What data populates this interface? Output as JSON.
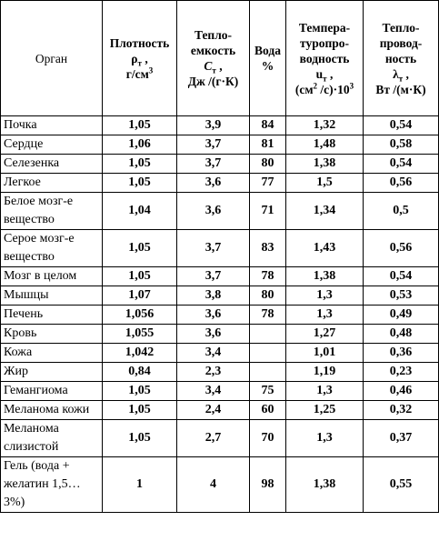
{
  "header": {
    "organ": "Орган",
    "density": {
      "title": "Плотность",
      "symbol": "ρ",
      "sub": "т",
      "unit": "г/см",
      "unit_sup": "3"
    },
    "heat_capacity": {
      "title": [
        "Тепло-",
        "емкость"
      ],
      "symbol": "C",
      "sub": "т",
      "unit": "Дж /(г·К)"
    },
    "water": {
      "title": "Вода",
      "unit": "%"
    },
    "diffusivity": {
      "title": [
        "Темпера-",
        "туропро-",
        "водность"
      ],
      "symbol": "u",
      "sub": "т",
      "unit": [
        "(см",
        "2",
        " /с)·10",
        "3"
      ]
    },
    "conductivity": {
      "title": [
        "Тепло-",
        "провод-",
        "ность"
      ],
      "symbol": "λ",
      "sub": "т",
      "unit": "Вт /(м·К)"
    }
  },
  "table": {
    "rows": [
      [
        "Почка",
        "1,05",
        "3,9",
        "84",
        "1,32",
        "0,54"
      ],
      [
        "Сердце",
        "1,06",
        "3,7",
        "81",
        "1,48",
        "0,58"
      ],
      [
        "Селезенка",
        "1,05",
        "3,7",
        "80",
        "1,38",
        "0,54"
      ],
      [
        "Легкое",
        "1,05",
        "3,6",
        "77",
        "1,5",
        "0,56"
      ],
      [
        "Белое мозг-е вещество",
        "1,04",
        "3,6",
        "71",
        "1,34",
        "0,5"
      ],
      [
        "Серое мозг-е вещество",
        "1,05",
        "3,7",
        "83",
        "1,43",
        "0,56"
      ],
      [
        "Мозг в целом",
        "1,05",
        "3,7",
        "78",
        "1,38",
        "0,54"
      ],
      [
        "Мышцы",
        "1,07",
        "3,8",
        "80",
        "1,3",
        "0,53"
      ],
      [
        "Печень",
        "1,056",
        "3,6",
        "78",
        "1,3",
        "0,49"
      ],
      [
        "Кровь",
        "1,055",
        "3,6",
        null,
        "1,27",
        "0,48"
      ],
      [
        "Кожа",
        "1,042",
        "3,4",
        null,
        "1,01",
        "0,36"
      ],
      [
        "Жир",
        "0,84",
        "2,3",
        null,
        "1,19",
        "0,23"
      ],
      [
        "Гемангиома",
        "1,05",
        "3,4",
        "75",
        "1,3",
        "0,46"
      ],
      [
        "Меланома кожи",
        "1,05",
        "2,4",
        "60",
        "1,25",
        "0,32"
      ],
      [
        "Меланома слизистой",
        "1,05",
        "2,7",
        "70",
        "1,3",
        "0,37"
      ],
      [
        "Гель (вода + желатин 1,5…3%)",
        "1",
        "4",
        "98",
        "1,38",
        "0,55"
      ]
    ]
  }
}
